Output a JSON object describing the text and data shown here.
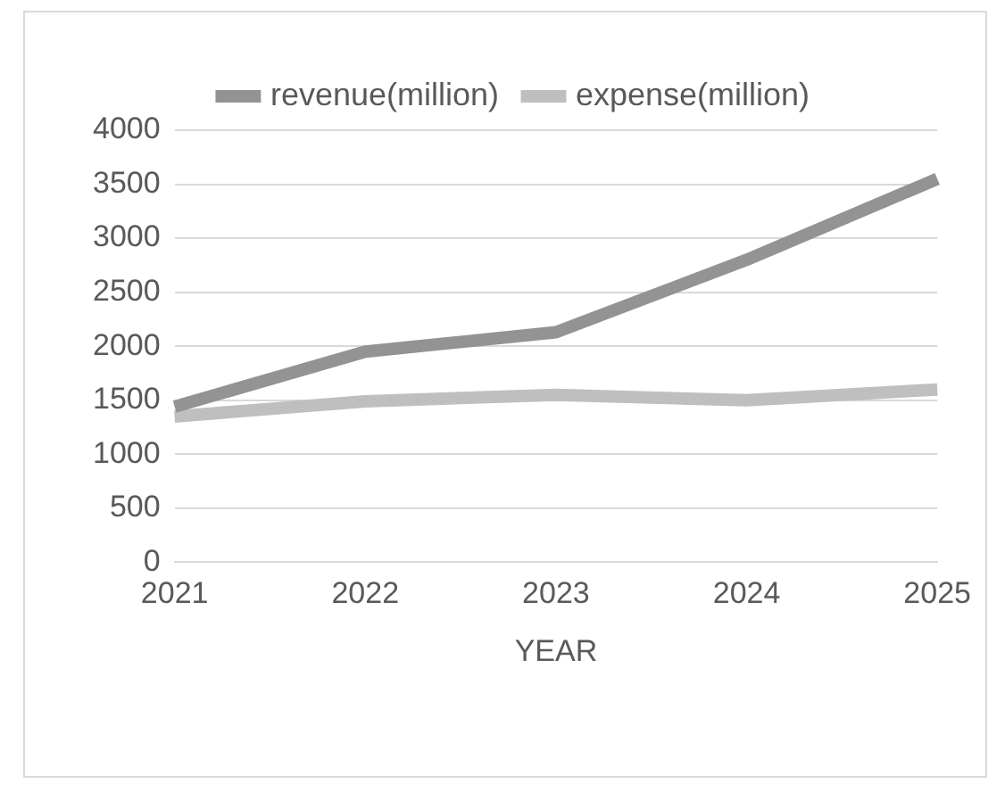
{
  "chart_data": {
    "type": "line",
    "xlabel": "YEAR",
    "categories": [
      "2021",
      "2022",
      "2023",
      "2024",
      "2025"
    ],
    "series": [
      {
        "name": "revenue(million)",
        "color": "#939393",
        "values": [
          1440,
          1950,
          2130,
          2800,
          3550
        ]
      },
      {
        "name": "expense(million)",
        "color": "#bfbfbf",
        "values": [
          1350,
          1490,
          1550,
          1500,
          1600
        ]
      }
    ],
    "ylim": [
      0,
      4000
    ],
    "yticks": [
      0,
      500,
      1000,
      1500,
      2000,
      2500,
      3000,
      3500,
      4000
    ],
    "grid": "y",
    "legend": "top",
    "marker": "none",
    "line_style": "solid"
  }
}
